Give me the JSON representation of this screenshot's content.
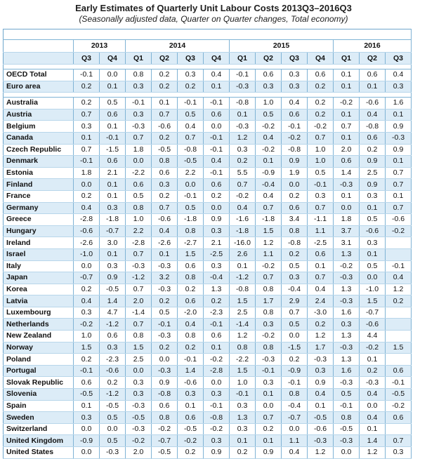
{
  "title": "Early Estimates of Quarterly Unit Labour Costs 2013Q3–2016Q3",
  "subtitle": "(Seasonally adjusted data, Quarter on Quarter changes, Total economy)",
  "years": [
    "2013",
    "2014",
    "2015",
    "2016"
  ],
  "quarters": [
    "Q3",
    "Q4",
    "Q1",
    "Q2",
    "Q3",
    "Q4",
    "Q1",
    "Q2",
    "Q3",
    "Q4",
    "Q1",
    "Q2",
    "Q3"
  ],
  "groups": [
    [
      {
        "name": "OECD Total",
        "values": [
          "-0.1",
          "0.0",
          "0.8",
          "0.2",
          "0.3",
          "0.4",
          "-0.1",
          "0.6",
          "0.3",
          "0.6",
          "0.1",
          "0.6",
          "0.4"
        ]
      },
      {
        "name": "Euro area",
        "values": [
          "0.2",
          "0.1",
          "0.3",
          "0.2",
          "0.2",
          "0.1",
          "-0.3",
          "0.3",
          "0.3",
          "0.2",
          "0.1",
          "0.1",
          "0.3"
        ]
      }
    ],
    [
      {
        "name": "Australia",
        "values": [
          "0.2",
          "0.5",
          "-0.1",
          "0.1",
          "-0.1",
          "-0.1",
          "-0.8",
          "1.0",
          "0.4",
          "0.2",
          "-0.2",
          "-0.6",
          "1.6"
        ]
      },
      {
        "name": "Austria",
        "values": [
          "0.7",
          "0.6",
          "0.3",
          "0.7",
          "0.5",
          "0.6",
          "0.1",
          "0.5",
          "0.6",
          "0.2",
          "0.1",
          "0.4",
          "0.1"
        ]
      },
      {
        "name": "Belgium",
        "values": [
          "0.3",
          "0.1",
          "-0.3",
          "-0.6",
          "0.4",
          "0.0",
          "-0.3",
          "-0.2",
          "-0.1",
          "-0.2",
          "0.7",
          "-0.8",
          "0.9"
        ]
      },
      {
        "name": "Canada",
        "values": [
          "0.1",
          "-0.1",
          "0.7",
          "0.2",
          "0.7",
          "-0.1",
          "1.2",
          "0.4",
          "-0.2",
          "0.7",
          "0.1",
          "0.6",
          "-0.3"
        ]
      },
      {
        "name": "Czech Republic",
        "values": [
          "0.7",
          "-1.5",
          "1.8",
          "-0.5",
          "-0.8",
          "-0.1",
          "0.3",
          "-0.2",
          "-0.8",
          "1.0",
          "2.0",
          "0.2",
          "0.9"
        ]
      },
      {
        "name": "Denmark",
        "values": [
          "-0.1",
          "0.6",
          "0.0",
          "0.8",
          "-0.5",
          "0.4",
          "0.2",
          "0.1",
          "0.9",
          "1.0",
          "0.6",
          "0.9",
          "0.1"
        ]
      },
      {
        "name": "Estonia",
        "values": [
          "1.8",
          "2.1",
          "-2.2",
          "0.6",
          "2.2",
          "-0.1",
          "5.5",
          "-0.9",
          "1.9",
          "0.5",
          "1.4",
          "2.5",
          "0.7"
        ]
      },
      {
        "name": "Finland",
        "values": [
          "0.0",
          "0.1",
          "0.6",
          "0.3",
          "0.0",
          "0.6",
          "0.7",
          "-0.4",
          "0.0",
          "-0.1",
          "-0.3",
          "0.9",
          "0.7"
        ]
      },
      {
        "name": "France",
        "values": [
          "0.2",
          "0.1",
          "0.5",
          "0.2",
          "-0.1",
          "0.2",
          "-0.2",
          "0.4",
          "0.2",
          "0.3",
          "0.1",
          "0.3",
          "0.1"
        ]
      },
      {
        "name": "Germany",
        "values": [
          "0.4",
          "0.3",
          "0.8",
          "0.7",
          "0.5",
          "0.0",
          "0.4",
          "0.7",
          "0.6",
          "0.7",
          "0.0",
          "0.1",
          "0.7"
        ]
      },
      {
        "name": "Greece",
        "values": [
          "-2.8",
          "-1.8",
          "1.0",
          "-0.6",
          "-1.8",
          "0.9",
          "-1.6",
          "-1.8",
          "3.4",
          "-1.1",
          "1.8",
          "0.5",
          "-0.6"
        ]
      },
      {
        "name": "Hungary",
        "values": [
          "-0.6",
          "-0.7",
          "2.2",
          "0.4",
          "0.8",
          "0.3",
          "-1.8",
          "1.5",
          "0.8",
          "1.1",
          "3.7",
          "-0.6",
          "-0.2"
        ]
      },
      {
        "name": "Ireland",
        "values": [
          "-2.6",
          "3.0",
          "-2.8",
          "-2.6",
          "-2.7",
          "2.1",
          "-16.0",
          "1.2",
          "-0.8",
          "-2.5",
          "3.1",
          "0.3",
          ""
        ]
      },
      {
        "name": "Israel",
        "values": [
          "-1.0",
          "0.1",
          "0.7",
          "0.1",
          "1.5",
          "-2.5",
          "2.6",
          "1.1",
          "0.2",
          "0.6",
          "1.3",
          "0.1",
          ""
        ]
      },
      {
        "name": "Italy",
        "values": [
          "0.0",
          "0.3",
          "-0.3",
          "-0.3",
          "0.6",
          "0.3",
          "0.1",
          "-0.2",
          "0.5",
          "0.1",
          "-0.2",
          "0.5",
          "-0.1"
        ]
      },
      {
        "name": "Japan",
        "values": [
          "-0.7",
          "0.9",
          "-1.2",
          "3.2",
          "0.8",
          "-0.4",
          "-1.2",
          "0.7",
          "0.3",
          "0.7",
          "-0.3",
          "0.0",
          "0.4"
        ]
      },
      {
        "name": "Korea",
        "values": [
          "0.2",
          "-0.5",
          "0.7",
          "-0.3",
          "0.2",
          "1.3",
          "-0.8",
          "0.8",
          "-0.4",
          "0.4",
          "1.3",
          "-1.0",
          "1.2"
        ]
      },
      {
        "name": "Latvia",
        "values": [
          "0.4",
          "1.4",
          "2.0",
          "0.2",
          "0.6",
          "0.2",
          "1.5",
          "1.7",
          "2.9",
          "2.4",
          "-0.3",
          "1.5",
          "0.2"
        ]
      },
      {
        "name": "Luxembourg",
        "values": [
          "0.3",
          "4.7",
          "-1.4",
          "0.5",
          "-2.0",
          "-2.3",
          "2.5",
          "0.8",
          "0.7",
          "-3.0",
          "1.6",
          "-0.7",
          ""
        ]
      },
      {
        "name": "Netherlands",
        "values": [
          "-0.2",
          "-1.2",
          "0.7",
          "-0.1",
          "0.4",
          "-0.1",
          "-1.4",
          "0.3",
          "0.5",
          "0.2",
          "0.3",
          "-0.6",
          ""
        ]
      },
      {
        "name": "New Zealand",
        "values": [
          "1.0",
          "0.6",
          "0.8",
          "-0.3",
          "0.8",
          "0.6",
          "1.2",
          "-0.2",
          "0.0",
          "1.2",
          "1.3",
          "4.4",
          ""
        ]
      },
      {
        "name": "Norway",
        "values": [
          "1.5",
          "0.3",
          "1.5",
          "0.2",
          "0.2",
          "0.1",
          "0.8",
          "0.8",
          "-1.5",
          "1.7",
          "-0.3",
          "-0.2",
          "1.5"
        ]
      },
      {
        "name": "Poland",
        "values": [
          "0.2",
          "-2.3",
          "2.5",
          "0.0",
          "-0.1",
          "-0.2",
          "-2.2",
          "-0.3",
          "0.2",
          "-0.3",
          "1.3",
          "0.1",
          ""
        ]
      },
      {
        "name": "Portugal",
        "values": [
          "-0.1",
          "-0.6",
          "0.0",
          "-0.3",
          "1.4",
          "-2.8",
          "1.5",
          "-0.1",
          "-0.9",
          "0.3",
          "1.6",
          "0.2",
          "0.6"
        ]
      },
      {
        "name": "Slovak Republic",
        "values": [
          "0.6",
          "0.2",
          "0.3",
          "0.9",
          "-0.6",
          "0.0",
          "1.0",
          "0.3",
          "-0.1",
          "0.9",
          "-0.3",
          "-0.3",
          "-0.1"
        ]
      },
      {
        "name": "Slovenia",
        "values": [
          "-0.5",
          "-1.2",
          "0.3",
          "-0.8",
          "0.3",
          "0.3",
          "-0.1",
          "0.1",
          "0.8",
          "0.4",
          "0.5",
          "0.4",
          "-0.5"
        ]
      },
      {
        "name": "Spain",
        "values": [
          "0.1",
          "-0.5",
          "-0.3",
          "0.6",
          "0.1",
          "-0.1",
          "0.3",
          "0.0",
          "-0.4",
          "0.1",
          "-0.1",
          "0.0",
          "-0.2"
        ]
      },
      {
        "name": "Sweden",
        "values": [
          "0.3",
          "0.5",
          "-0.5",
          "0.8",
          "0.6",
          "-0.8",
          "1.3",
          "0.7",
          "-0.7",
          "-0.5",
          "0.8",
          "0.4",
          "0.6"
        ]
      },
      {
        "name": "Switzerland",
        "values": [
          "0.0",
          "0.0",
          "-0.3",
          "-0.2",
          "-0.5",
          "-0.2",
          "0.3",
          "0.2",
          "0.0",
          "-0.6",
          "-0.5",
          "0.1",
          ""
        ]
      },
      {
        "name": "United Kingdom",
        "values": [
          "-0.9",
          "0.5",
          "-0.2",
          "-0.7",
          "-0.2",
          "0.3",
          "0.1",
          "0.1",
          "1.1",
          "-0.3",
          "-0.3",
          "1.4",
          "0.7"
        ]
      },
      {
        "name": "United States",
        "values": [
          "0.0",
          "-0.3",
          "2.0",
          "-0.5",
          "0.2",
          "0.9",
          "0.2",
          "0.9",
          "0.4",
          "1.2",
          "0.0",
          "1.2",
          "0.3"
        ]
      }
    ]
  ]
}
